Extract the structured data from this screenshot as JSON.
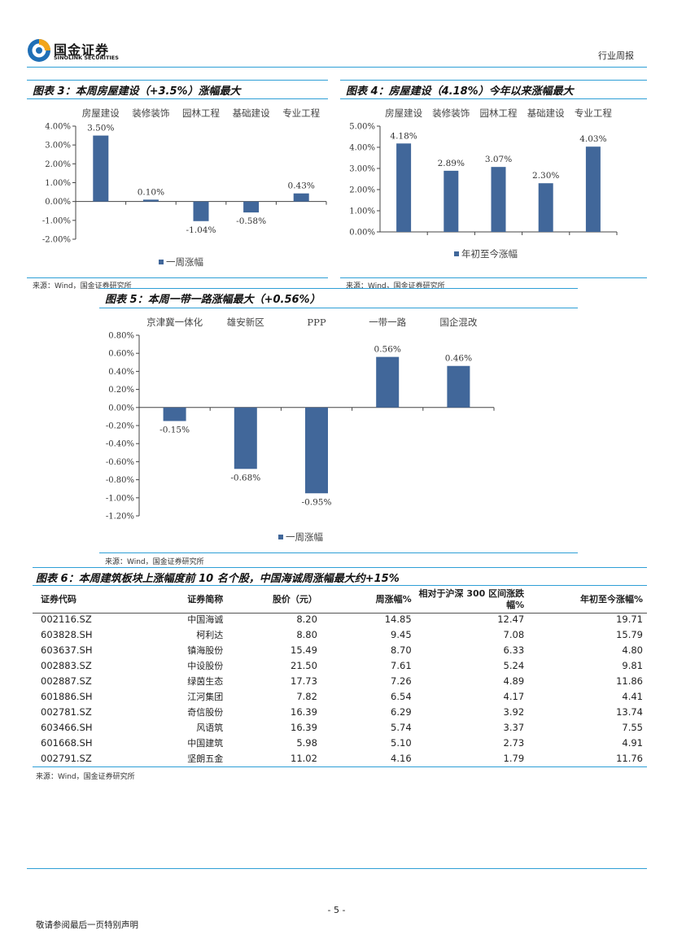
{
  "header": {
    "logo_cn": "国金证券",
    "logo_en": "SINOLINK SECURITIES",
    "report_type": "行业周报"
  },
  "fig3": {
    "title": "图表 3：本周房屋建设（+3.5%）涨幅最大",
    "source": "来源：Wind，国金证券研究所"
  },
  "fig4": {
    "title": "图表 4：房屋建设（4.18%）今年以来涨幅最大",
    "source": "来源：Wind，国金证券研究所"
  },
  "fig5": {
    "title": "图表 5：本周一带一路涨幅最大（+0.56%）",
    "source": "来源：Wind，国金证券研究所"
  },
  "chart_data": [
    {
      "id": "fig3",
      "type": "bar",
      "categories": [
        "房屋建设",
        "装修装饰",
        "园林工程",
        "基础建设",
        "专业工程"
      ],
      "values": [
        3.5,
        0.1,
        -1.04,
        -0.58,
        0.43
      ],
      "labels": [
        "3.50%",
        "0.10%",
        "-1.04%",
        "-0.58%",
        "0.43%"
      ],
      "yticks": [
        "4.00%",
        "3.00%",
        "2.00%",
        "1.00%",
        "0.00%",
        "-1.00%",
        "-2.00%"
      ],
      "ylim": [
        -2,
        4
      ],
      "legend": "一周涨幅",
      "color": "#41679a"
    },
    {
      "id": "fig4",
      "type": "bar",
      "categories": [
        "房屋建设",
        "装修装饰",
        "园林工程",
        "基础建设",
        "专业工程"
      ],
      "values": [
        4.18,
        2.89,
        3.07,
        2.3,
        4.03
      ],
      "labels": [
        "4.18%",
        "2.89%",
        "3.07%",
        "2.30%",
        "4.03%"
      ],
      "yticks": [
        "5.00%",
        "4.00%",
        "3.00%",
        "2.00%",
        "1.00%",
        "0.00%"
      ],
      "ylim": [
        0,
        5
      ],
      "legend": "年初至今涨幅",
      "color": "#41679a"
    },
    {
      "id": "fig5",
      "type": "bar",
      "categories": [
        "京津冀一体化",
        "雄安新区",
        "PPP",
        "一带一路",
        "国企混改"
      ],
      "values": [
        -0.15,
        -0.68,
        -0.95,
        0.56,
        0.46
      ],
      "labels": [
        "-0.15%",
        "-0.68%",
        "-0.95%",
        "0.56%",
        "0.46%"
      ],
      "yticks": [
        "0.80%",
        "0.60%",
        "0.40%",
        "0.20%",
        "0.00%",
        "-0.20%",
        "-0.40%",
        "-0.60%",
        "-0.80%",
        "-1.00%",
        "-1.20%"
      ],
      "ylim": [
        -1.2,
        0.8
      ],
      "legend": "一周涨幅",
      "color": "#41679a"
    }
  ],
  "table6": {
    "title": "图表 6：本周建筑板块上涨幅度前 10 名个股，中国海诚周涨幅最大约+15%",
    "headers": [
      "证券代码",
      "证券简称",
      "股价（元）",
      "周涨幅%",
      "相对于沪深 300 区间涨跌幅%",
      "年初至今涨幅%"
    ],
    "rows": [
      [
        "002116.SZ",
        "中国海诚",
        "8.20",
        "14.85",
        "12.47",
        "19.71"
      ],
      [
        "603828.SH",
        "柯利达",
        "8.80",
        "9.45",
        "7.08",
        "15.79"
      ],
      [
        "603637.SH",
        "镇海股份",
        "15.49",
        "8.70",
        "6.33",
        "4.80"
      ],
      [
        "002883.SZ",
        "中设股份",
        "21.50",
        "7.61",
        "5.24",
        "9.81"
      ],
      [
        "002887.SZ",
        "绿茵生态",
        "17.73",
        "7.26",
        "4.89",
        "11.86"
      ],
      [
        "601886.SH",
        "江河集团",
        "7.82",
        "6.54",
        "4.17",
        "4.41"
      ],
      [
        "002781.SZ",
        "奇信股份",
        "16.39",
        "6.29",
        "3.92",
        "13.74"
      ],
      [
        "603466.SH",
        "风语筑",
        "16.39",
        "5.74",
        "3.37",
        "7.55"
      ],
      [
        "601668.SH",
        "中国建筑",
        "5.98",
        "5.10",
        "2.73",
        "4.91"
      ],
      [
        "002791.SZ",
        "坚朗五金",
        "11.02",
        "4.16",
        "1.79",
        "11.76"
      ]
    ],
    "source": "来源：Wind，国金证券研究所"
  },
  "footer": {
    "page_number": "- 5 -",
    "disclaimer": "敬请参阅最后一页特别声明"
  }
}
